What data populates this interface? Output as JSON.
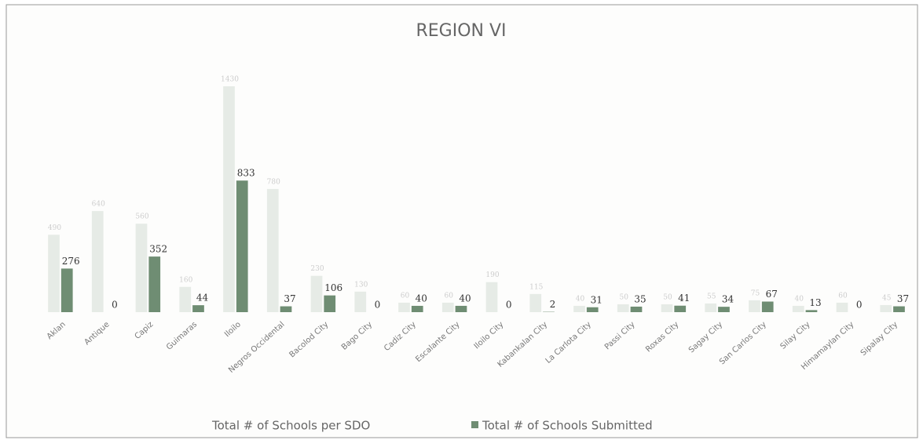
{
  "chart_data": {
    "type": "bar",
    "title": "REGION VI",
    "categories": [
      "Aklan",
      "Antique",
      "Capiz",
      "Guimaras",
      "Iloilo",
      "Negros Occidental",
      "Bacolod City",
      "Bago City",
      "Cadiz City",
      "Escalante City",
      "Iloilo City",
      "Kabankalan City",
      "La Carlota City",
      "Passi City",
      "Roxas City",
      "Sagay City",
      "San Carlos City",
      "Silay City",
      "Himamaylan City",
      "Sipalay City"
    ],
    "series": [
      {
        "name": "Total # of Schools per SDO",
        "color": "#e6ebe6",
        "values": [
          490,
          640,
          560,
          160,
          1430,
          780,
          230,
          130,
          60,
          60,
          190,
          115,
          40,
          50,
          50,
          55,
          75,
          40,
          60,
          45
        ]
      },
      {
        "name": "Total # of Schools Submitted",
        "color": "#6f8d73",
        "values": [
          276,
          0,
          352,
          44,
          833,
          37,
          106,
          0,
          40,
          40,
          0,
          2,
          31,
          35,
          41,
          34,
          67,
          13,
          0,
          37
        ]
      }
    ],
    "legend": "bottom"
  }
}
